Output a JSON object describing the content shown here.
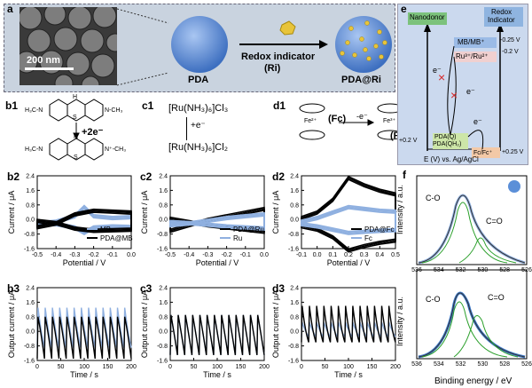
{
  "panel_labels": {
    "a": "a",
    "b1": "b1",
    "c1": "c1",
    "d1": "d1",
    "b2": "b2",
    "c2": "c2",
    "d2": "d2",
    "b3": "b3",
    "c3": "c3",
    "d3": "d3",
    "e": "e",
    "f": "f"
  },
  "panel_a": {
    "scale_bar": "200 nm",
    "pda_label": "PDA",
    "ri_label_line1": "Redox indicator",
    "ri_label_line2": "(Ri)",
    "product_label": "PDA@Ri",
    "colors": {
      "panel_bg": "#c9d3df",
      "sphere": "#5b8fd8",
      "gold": "#e8c43a"
    }
  },
  "panel_b1": {
    "reaction": "+2e⁻"
  },
  "panel_c1": {
    "top": "[Ru(NH₃)₆]Cl₃",
    "mid": "+e⁻",
    "bottom": "[Ru(NH₃)₆]Cl₂"
  },
  "panel_d1": {
    "fc_label": "(Fc)",
    "fc_plus_label": "(Fc⁺)",
    "electron": "-e⁻",
    "fe2": "Fe²⁺",
    "fe3": "Fe³⁺"
  },
  "panel_e": {
    "nanodonor": "Nanodonor",
    "redox_indicator_line1": "Redox",
    "redox_indicator_line2": "Indicator",
    "mb": "MB/MB⁺",
    "ru": "Ru³⁺/Ru²⁺",
    "pda_q": "PDA(Q)",
    "pda_qh": "PDA(QH₂)",
    "fc": "Fc/Fc⁺",
    "v1": "-0.25 V",
    "v2": "-0.2 V",
    "v3": "+0.2 V",
    "v4": "+0.25 V",
    "e1": "e⁻",
    "e2": "e⁻",
    "e3": "e⁻",
    "xlabel": "E (V) vs. Ag/AgCl",
    "colors": {
      "panel_bg": "#cbd9ee",
      "nanodonor": "#7cc27c",
      "redox": "#8fb4e0",
      "mb": "#9bbbe6",
      "ru": "#f0d0d0",
      "pda": "#cde6a8",
      "fc": "#f3c9a7",
      "cross": "#d62728"
    }
  },
  "panel_f": {
    "ylabel": "Intensity / a.u.",
    "xlabel": "Binding energy / eV",
    "co": "C-O",
    "ceo": "C=O",
    "xticks": [
      "536",
      "534",
      "532",
      "530",
      "528",
      "526"
    ]
  },
  "chart_data": [
    {
      "id": "b2",
      "type": "line",
      "xlabel": "Potential / V",
      "ylabel": "Current / μA",
      "xlim": [
        -0.5,
        0.0
      ],
      "ylim": [
        -1.6,
        2.4
      ],
      "xticks": [
        "-0.5",
        "-0.4",
        "-0.3",
        "-0.2",
        "-0.1",
        "0.0"
      ],
      "yticks": [
        "-1.6",
        "-0.8",
        "0.0",
        "0.8",
        "1.6",
        "2.4"
      ],
      "series": [
        {
          "name": "MB",
          "color": "#8fb0e0",
          "x": [
            -0.5,
            -0.4,
            -0.3,
            -0.25,
            -0.2,
            -0.1,
            0.0
          ],
          "y": [
            -0.3,
            -0.2,
            0.1,
            0.6,
            0.1,
            0.0,
            0.05
          ]
        },
        {
          "name": "PDA@MB",
          "color": "#000000",
          "x": [
            -0.5,
            -0.4,
            -0.3,
            -0.2,
            -0.1,
            0.0
          ],
          "y": [
            -0.5,
            -0.3,
            0.2,
            0.4,
            0.35,
            0.3
          ]
        }
      ]
    },
    {
      "id": "c2",
      "type": "line",
      "xlabel": "Potential / V",
      "ylabel": "Current / μA",
      "xlim": [
        -0.5,
        0.0
      ],
      "ylim": [
        -1.6,
        2.4
      ],
      "xticks": [
        "-0.5",
        "-0.4",
        "-0.3",
        "-0.2",
        "-0.1",
        "0.0"
      ],
      "yticks": [
        "-1.6",
        "-0.8",
        "0.0",
        "0.8",
        "1.6",
        "2.4"
      ],
      "series": [
        {
          "name": "PDA@Ru",
          "color": "#000000",
          "x": [
            -0.5,
            -0.4,
            -0.3,
            -0.2,
            -0.1,
            0.0
          ],
          "y": [
            -0.7,
            -0.4,
            -0.1,
            0.1,
            0.3,
            0.5
          ]
        },
        {
          "name": "Ru",
          "color": "#8fb0e0",
          "x": [
            -0.5,
            -0.4,
            -0.3,
            -0.2,
            -0.1,
            0.0
          ],
          "y": [
            -0.4,
            -0.3,
            -0.15,
            0.0,
            0.1,
            0.2
          ]
        }
      ]
    },
    {
      "id": "d2",
      "type": "line",
      "xlabel": "Potential / V",
      "ylabel": "Current / μA",
      "xlim": [
        -0.1,
        0.5
      ],
      "ylim": [
        -1.6,
        2.4
      ],
      "xticks": [
        "-0.1",
        "0.0",
        "0.1",
        "0.2",
        "0.3",
        "0.4",
        "0.5"
      ],
      "yticks": [
        "-1.6",
        "-0.8",
        "0.0",
        "0.8",
        "1.6",
        "2.4"
      ],
      "series": [
        {
          "name": "PDA@Fc",
          "color": "#000000",
          "x": [
            -0.1,
            0.0,
            0.1,
            0.2,
            0.3,
            0.4,
            0.5
          ],
          "y": [
            0.0,
            0.3,
            1.0,
            2.2,
            1.8,
            1.5,
            1.3
          ]
        },
        {
          "name": "Fc",
          "color": "#8fb0e0",
          "x": [
            -0.1,
            0.0,
            0.1,
            0.2,
            0.3,
            0.4,
            0.5
          ],
          "y": [
            -0.2,
            0.0,
            0.3,
            0.6,
            0.5,
            0.4,
            0.35
          ]
        }
      ]
    },
    {
      "id": "b3",
      "type": "line",
      "xlabel": "Time / s",
      "ylabel": "Output current / μA",
      "xlim": [
        0,
        200
      ],
      "ylim": [
        -1.6,
        2.4
      ],
      "xticks": [
        "0",
        "50",
        "100",
        "150",
        "200"
      ],
      "yticks": [
        "-1.6",
        "-0.8",
        "0.0",
        "0.8",
        "1.6",
        "2.4"
      ],
      "cycles": 13,
      "black_amp": [
        0.8,
        -1.5
      ],
      "blue_amp": [
        1.3,
        -0.9
      ]
    },
    {
      "id": "c3",
      "type": "line",
      "xlabel": "Time / s",
      "ylabel": "Output current / μA",
      "xlim": [
        0,
        200
      ],
      "ylim": [
        -1.6,
        2.4
      ],
      "xticks": [
        "0",
        "50",
        "100",
        "150",
        "200"
      ],
      "yticks": [
        "-1.6",
        "-0.8",
        "0.0",
        "0.8",
        "1.6",
        "2.4"
      ],
      "cycles": 13,
      "black_amp": [
        0.9,
        -1.3
      ],
      "blue_amp": [
        0.9,
        -1.3
      ]
    },
    {
      "id": "d3",
      "type": "line",
      "xlabel": "Time / s",
      "ylabel": "Output current / μA",
      "xlim": [
        0,
        200
      ],
      "ylim": [
        -1.6,
        2.4
      ],
      "xticks": [
        "0",
        "50",
        "100",
        "150",
        "200"
      ],
      "yticks": [
        "-1.6",
        "-0.8",
        "0.0",
        "0.8",
        "1.6",
        "2.4"
      ],
      "cycles": 13,
      "black_amp": [
        1.4,
        -0.6
      ],
      "blue_amp": [
        0.5,
        -0.3
      ]
    }
  ]
}
